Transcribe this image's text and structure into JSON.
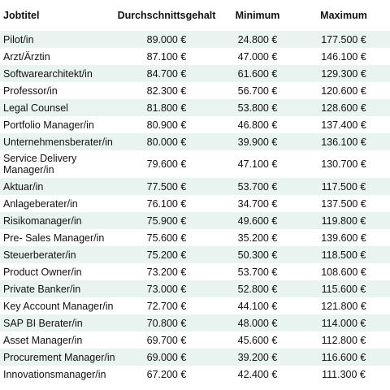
{
  "table": {
    "headers": [
      "Jobtitel",
      "Durchschnittsgehalt",
      "Minimum",
      "Maximum"
    ],
    "rows": [
      [
        "Pilot/in",
        "89.000 €",
        "24.800 €",
        "177.500 €"
      ],
      [
        "Arzt/Ärztin",
        "87.100 €",
        "47.000 €",
        "146.100 €"
      ],
      [
        "Softwarearchitekt/in",
        "84.700 €",
        "61.600 €",
        "129.300 €"
      ],
      [
        "Professor/in",
        "82.300 €",
        "56.700 €",
        "120.600 €"
      ],
      [
        "Legal Counsel",
        "81.800 €",
        "53.800 €",
        "128.600 €"
      ],
      [
        "Portfolio Manager/in",
        "80.900 €",
        "46.800 €",
        "137.400 €"
      ],
      [
        "Unternehmensberater/in",
        "80.000 €",
        "39.900 €",
        "136.100 €"
      ],
      [
        "Service Delivery Manager/in",
        "79.600 €",
        "47.100 €",
        "130.700 €"
      ],
      [
        "Aktuar/in",
        "77.500 €",
        "53.700 €",
        "117.500 €"
      ],
      [
        "Anlageberater/in",
        "76.100 €",
        "34.700 €",
        "137.500 €"
      ],
      [
        "Risikomanager/in",
        "75.900 €",
        "49.600 €",
        "119.800 €"
      ],
      [
        "Pre- Sales Manager/in",
        "75.600 €",
        "35.200 €",
        "139.600 €"
      ],
      [
        "Steuerberater/in",
        "75.200 €",
        "50.300 €",
        "118.500 €"
      ],
      [
        "Product Owner/in",
        "73.200 €",
        "53.700 €",
        "108.600 €"
      ],
      [
        "Private Banker/in",
        "73.000 €",
        "52.800 €",
        "115.600 €"
      ],
      [
        "Key Account Manager/in",
        "72.700 €",
        "44.100 €",
        "121.800 €"
      ],
      [
        "SAP BI Berater/in",
        "70.800 €",
        "48.000 €",
        "114.000 €"
      ],
      [
        "Asset Manager/in",
        "69.700 €",
        "45.600 €",
        "112.800 €"
      ],
      [
        "Procurement Manager/in",
        "69.000 €",
        "39.200 €",
        "116.600 €"
      ],
      [
        "Innovationsmanager/in",
        "67.200 €",
        "42.400 €",
        "111.300 €"
      ]
    ]
  }
}
